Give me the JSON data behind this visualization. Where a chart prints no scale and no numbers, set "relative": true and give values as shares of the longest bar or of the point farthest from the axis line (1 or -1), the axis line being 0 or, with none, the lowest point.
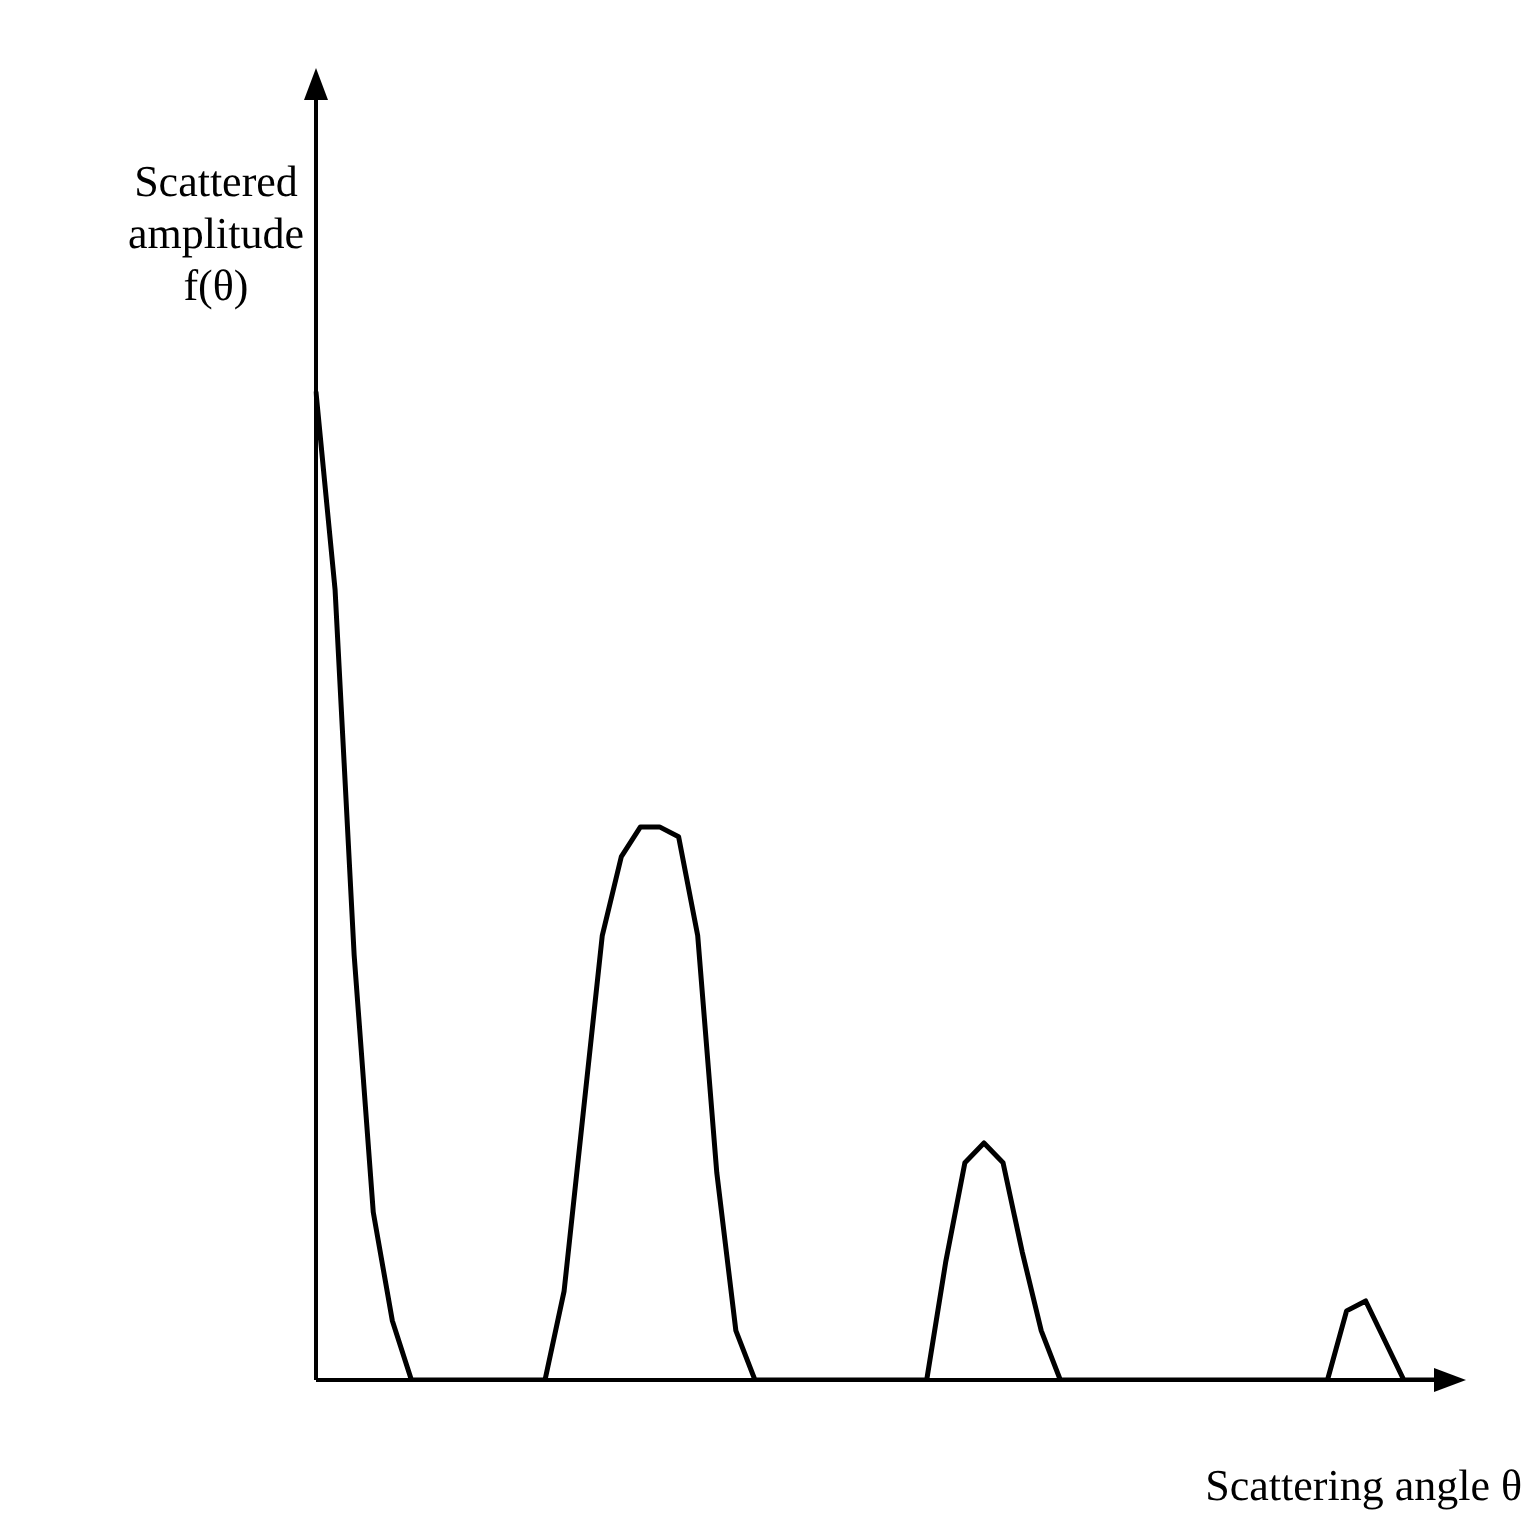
{
  "chart_data": {
    "type": "line",
    "relative": true,
    "xlabel": "Scattering angle θ",
    "ylabel": "Scattered amplitude f(θ)",
    "categories": [
      null,
      null,
      null,
      null,
      null,
      null,
      null,
      null,
      null,
      null,
      null,
      null,
      null,
      null,
      null,
      null,
      null,
      null,
      null,
      null,
      null,
      null,
      null,
      null,
      null,
      null,
      null,
      null,
      null,
      null,
      null,
      null,
      null,
      null,
      null,
      null,
      null,
      null,
      null,
      null,
      null,
      null,
      null,
      null,
      null,
      null,
      null,
      null,
      null,
      null,
      null,
      null,
      null,
      null,
      null,
      null,
      null,
      null,
      null,
      null
    ],
    "series": [
      {
        "color": "#000000",
        "values": [
          1.0,
          0.8,
          0.43,
          0.17,
          0.06,
          0,
          0,
          0,
          0,
          0,
          0,
          0,
          0,
          0.09,
          0.27,
          0.45,
          0.53,
          0.56,
          0.56,
          0.55,
          0.45,
          0.21,
          0.05,
          0,
          0,
          0,
          0,
          0,
          0,
          0,
          0,
          0,
          0,
          0.12,
          0.22,
          0.24,
          0.22,
          0.13,
          0.05,
          0,
          0,
          0,
          0,
          0,
          0,
          0,
          0,
          0,
          0,
          0,
          0,
          0,
          0,
          0,
          0.07,
          0.08,
          0.04,
          0,
          0,
          0
        ]
      }
    ],
    "grid": false,
    "legend": false
  }
}
